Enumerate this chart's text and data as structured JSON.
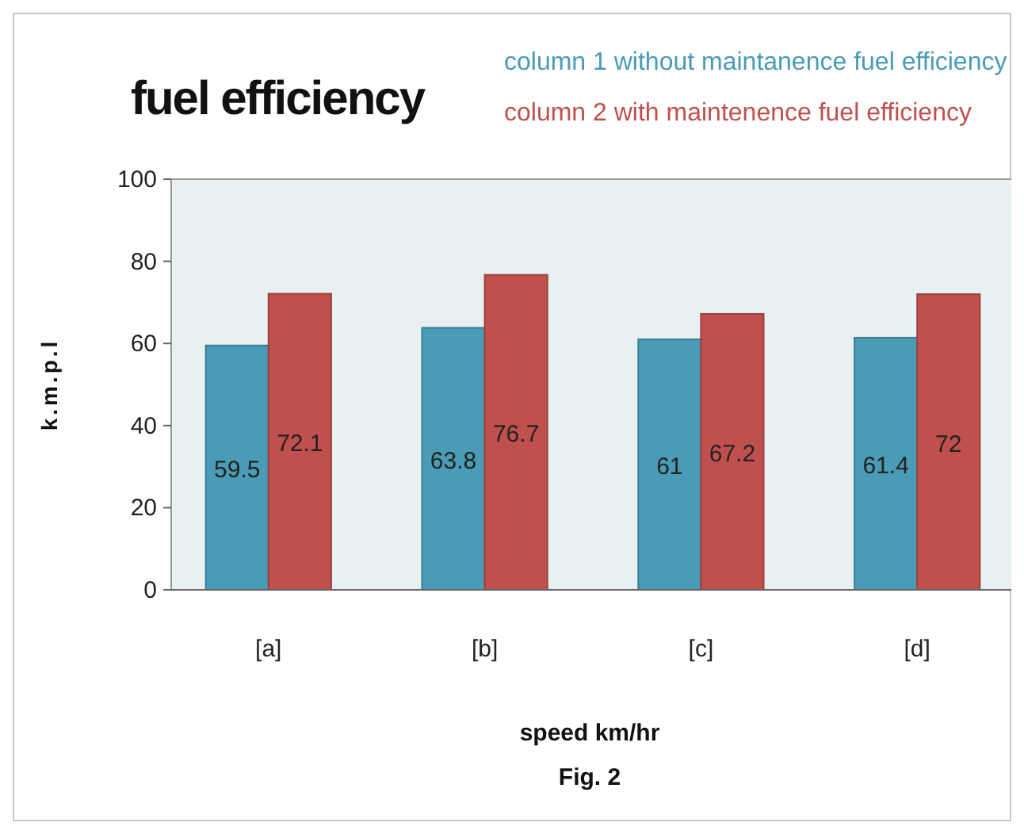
{
  "chart_data": {
    "type": "bar",
    "title": "fuel efficiency",
    "xlabel": "speed km/hr",
    "ylabel": "k.m.p.l",
    "annotations": [
      "Fig. 2"
    ],
    "categories": [
      "[a]",
      "[b]",
      "[c]",
      "[d]"
    ],
    "series": [
      {
        "name": "column 1 without maintanence fuel efficiency",
        "color": "#4a9bb5",
        "values": [
          59.5,
          63.8,
          61,
          61.4
        ]
      },
      {
        "name": "column 2 with maintenence fuel efficiency",
        "color": "#c0504d",
        "values": [
          72.1,
          76.7,
          67.2,
          72
        ]
      }
    ],
    "ylim": [
      0,
      100
    ],
    "yticks": [
      0,
      20,
      40,
      60,
      80,
      100
    ],
    "data_labels": true,
    "legend": "top right"
  }
}
